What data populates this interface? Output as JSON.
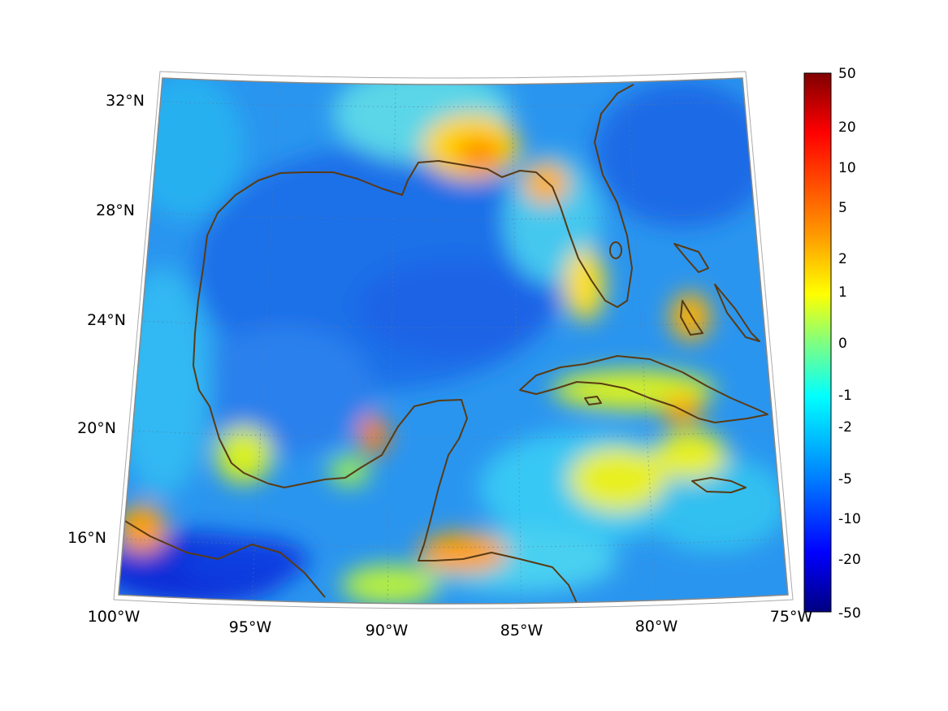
{
  "map": {
    "projection": "conic",
    "region": "Gulf of Mexico and Caribbean",
    "coastline_color": "#5a3a12",
    "gridlines": "dotted",
    "latitude_labels": [
      "32°N",
      "28°N",
      "24°N",
      "20°N",
      "16°N"
    ],
    "longitude_labels": [
      "100°W",
      "95°W",
      "90°W",
      "85°W",
      "80°W",
      "75°W"
    ]
  },
  "colorbar": {
    "colormap": "jet",
    "orientation": "vertical",
    "position": "right",
    "tick_labels": [
      "50",
      "20",
      "10",
      "5",
      "2",
      "1",
      "0",
      "-1",
      "-2",
      "-5",
      "-10",
      "-20",
      "-50"
    ]
  }
}
